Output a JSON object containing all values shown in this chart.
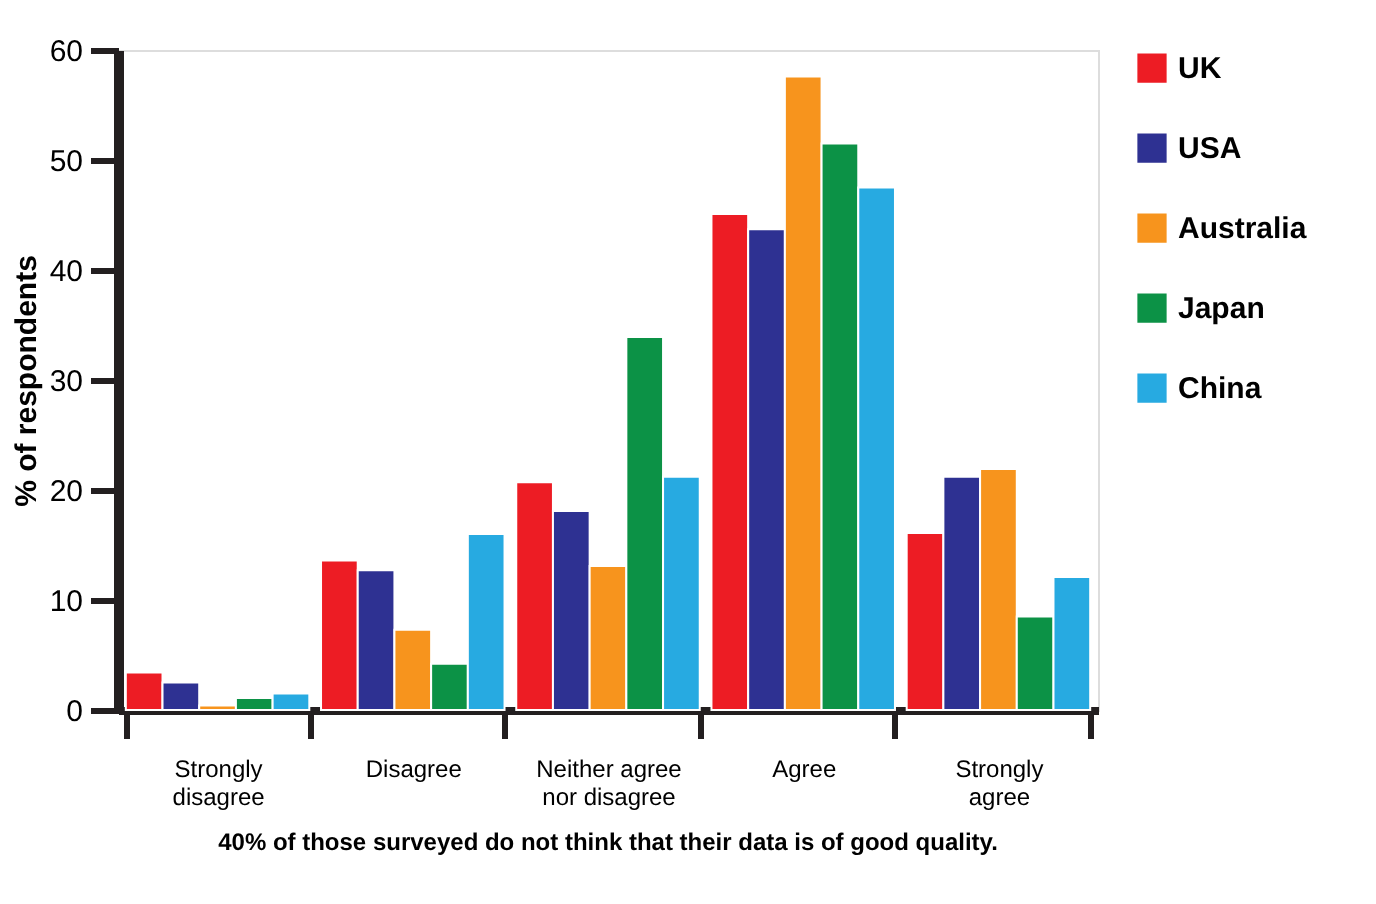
{
  "chart_data": {
    "type": "bar",
    "ylabel": "% of respondents",
    "categories": [
      "Strongly\ndisagree",
      "Disagree",
      "Neither agree\nnor disagree",
      "Agree",
      "Strongly\nagree"
    ],
    "series": [
      {
        "name": "UK",
        "color": "#ed1c24",
        "values": [
          3.4,
          13.6,
          20.7,
          45.1,
          16.1
        ]
      },
      {
        "name": "USA",
        "color": "#2e3192",
        "values": [
          2.5,
          12.7,
          18.1,
          43.7,
          21.2
        ]
      },
      {
        "name": "Australia",
        "color": "#f7941d",
        "values": [
          0.4,
          7.3,
          13.1,
          57.6,
          21.9
        ]
      },
      {
        "name": "Japan",
        "color": "#0c9246",
        "values": [
          1.1,
          4.2,
          33.9,
          51.5,
          8.5
        ]
      },
      {
        "name": "China",
        "color": "#27aae1",
        "values": [
          1.5,
          16.0,
          21.2,
          47.5,
          12.1
        ]
      }
    ],
    "ylim": [
      0,
      60
    ],
    "yticks": [
      0,
      10,
      20,
      30,
      40,
      50,
      60
    ],
    "grid": false,
    "legend": "top right",
    "annotations": [
      "40% of those surveyed do not think that their data is of good quality."
    ]
  }
}
